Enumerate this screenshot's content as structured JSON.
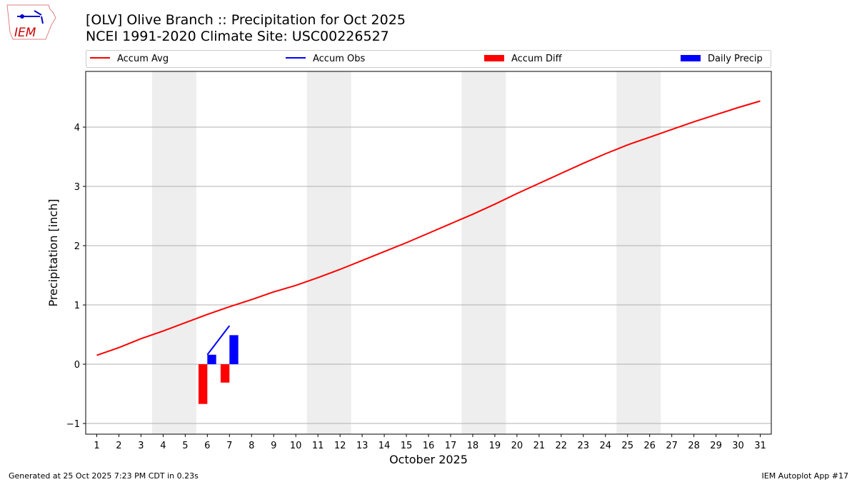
{
  "header": {
    "title1": "[OLV] Olive Branch :: Precipitation for Oct 2025",
    "title2": "NCEI 1991-2020 Climate Site: USC00226527",
    "logo_text": "IEM"
  },
  "footer": {
    "left": "Generated at 25 Oct 2025 7:23 PM CDT in 0.23s",
    "right": "IEM Autoplot App #17"
  },
  "chart_data": {
    "type": "line",
    "xlabel": "October 2025",
    "ylabel": "Precipitation [inch]",
    "xlim": [
      0.5,
      31.5
    ],
    "ylim": [
      -1.18,
      4.94
    ],
    "yticks": [
      -1,
      0,
      1,
      2,
      3,
      4
    ],
    "x": [
      1,
      2,
      3,
      4,
      5,
      6,
      7,
      8,
      9,
      10,
      11,
      12,
      13,
      14,
      15,
      16,
      17,
      18,
      19,
      20,
      21,
      22,
      23,
      24,
      25,
      26,
      27,
      28,
      29,
      30,
      31
    ],
    "weekend_shading": [
      [
        4,
        5
      ],
      [
        11,
        12
      ],
      [
        18,
        19
      ],
      [
        25,
        26
      ]
    ],
    "grid": "y",
    "legend_placement": "top",
    "series": [
      {
        "name": "Accum Avg",
        "type": "line",
        "color": "#ff0000",
        "values": [
          0.15,
          0.28,
          0.43,
          0.56,
          0.7,
          0.84,
          0.97,
          1.09,
          1.22,
          1.33,
          1.46,
          1.6,
          1.75,
          1.9,
          2.05,
          2.21,
          2.37,
          2.53,
          2.7,
          2.88,
          3.05,
          3.22,
          3.39,
          3.55,
          3.7,
          3.83,
          3.96,
          4.09,
          4.21,
          4.33,
          4.44
        ]
      },
      {
        "name": "Accum Obs",
        "type": "line",
        "color": "#0000ff",
        "x": [
          6,
          7
        ],
        "values": [
          0.16,
          0.65
        ]
      },
      {
        "name": "Accum Diff",
        "type": "bar",
        "color": "#ff0000",
        "x": [
          6,
          7
        ],
        "values": [
          -0.67,
          -0.31
        ]
      },
      {
        "name": "Daily Precip",
        "type": "bar",
        "color": "#0000ff",
        "x": [
          6,
          7
        ],
        "values": [
          0.16,
          0.49
        ]
      }
    ]
  }
}
